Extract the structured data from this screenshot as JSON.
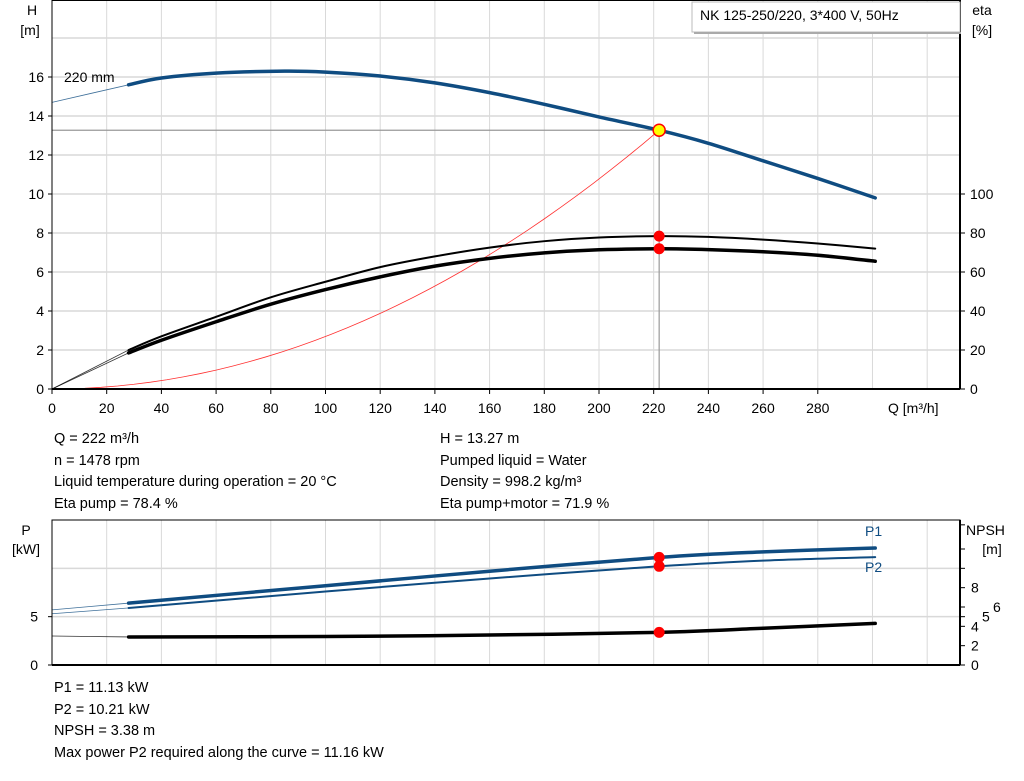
{
  "colors": {
    "head": "#0f4c81",
    "eta": "#000000",
    "system": "#ff3030",
    "duty_point": "#ffff00",
    "marker": "#ff0000",
    "grid": "#d9d9d9",
    "power": "#0f4c81",
    "npsh": "#000000"
  },
  "chart_data": [
    {
      "type": "line",
      "title": "NK 125-250/220, 3*400 V, 50Hz",
      "xlabel": "Q [m³/h]",
      "ylabel_left": [
        "H",
        "[m]"
      ],
      "ylabel_right": [
        "eta",
        "[%]"
      ],
      "xlim": [
        0,
        332
      ],
      "ylim_left": [
        0,
        20
      ],
      "ylim_right": [
        0,
        200
      ],
      "xticks": [
        "0",
        "20",
        "40",
        "60",
        "80",
        "100",
        "120",
        "140",
        "160",
        "180",
        "200",
        "220",
        "240",
        "260",
        "280"
      ],
      "yticks_left": [
        "0",
        "2",
        "4",
        "6",
        "8",
        "10",
        "12",
        "14",
        "16"
      ],
      "yticks_right": [
        "0",
        "20",
        "40",
        "60",
        "80",
        "100"
      ],
      "grid": true,
      "curve_label": "220 mm",
      "series": [
        {
          "key": "head",
          "axis": "left",
          "x": [
            0,
            28,
            40,
            60,
            85,
            100,
            120,
            140,
            160,
            180,
            200,
            222,
            240,
            260,
            280,
            301
          ],
          "y": [
            14.7,
            15.6,
            15.95,
            16.2,
            16.3,
            16.25,
            16.05,
            15.7,
            15.2,
            14.6,
            13.95,
            13.27,
            12.6,
            11.7,
            10.8,
            9.8
          ]
        },
        {
          "key": "eta_pump",
          "axis": "right",
          "x": [
            0,
            28,
            40,
            60,
            80,
            100,
            120,
            140,
            160,
            180,
            200,
            222,
            240,
            260,
            280,
            301
          ],
          "y": [
            0,
            20,
            27,
            37,
            47,
            55,
            62.5,
            68,
            72.5,
            75.8,
            77.7,
            78.4,
            78,
            76.6,
            74.6,
            72
          ]
        },
        {
          "key": "eta_pump_motor",
          "axis": "right",
          "x": [
            0,
            28,
            40,
            60,
            80,
            100,
            120,
            140,
            160,
            180,
            200,
            222,
            240,
            260,
            280,
            301
          ],
          "y": [
            0,
            18.5,
            25,
            34.5,
            43.5,
            51,
            57.5,
            63,
            67,
            69.8,
            71.4,
            71.9,
            71.5,
            70.4,
            68.6,
            65.5
          ]
        },
        {
          "key": "system",
          "axis": "left",
          "type": "quadratic",
          "x": [
            0,
            222
          ],
          "y": [
            0,
            13.27
          ]
        }
      ],
      "duty_point": {
        "Q": 222,
        "H": 13.27,
        "eta_pump": 78.4,
        "eta_pump_motor": 71.9
      }
    },
    {
      "type": "line",
      "ylabel_left": [
        "P",
        "[kW]"
      ],
      "ylabel_right": [
        "NPSH",
        "[m]"
      ],
      "xlim": [
        0,
        332
      ],
      "ylim_left": [
        0,
        15
      ],
      "ylim_right": [
        0,
        15
      ],
      "yticks_left": [
        "0",
        "5"
      ],
      "yticks_right": [
        "0",
        "2",
        "4",
        "5",
        "6",
        "8"
      ],
      "grid": true,
      "series": [
        {
          "name": "P1",
          "axis": "left",
          "x": [
            0,
            28,
            100,
            160,
            222,
            260,
            301
          ],
          "y": [
            5.7,
            6.4,
            8.2,
            9.7,
            11.13,
            11.7,
            12.1
          ]
        },
        {
          "name": "P2",
          "axis": "left",
          "x": [
            0,
            28,
            100,
            160,
            222,
            260,
            301
          ],
          "y": [
            5.3,
            5.9,
            7.6,
            8.95,
            10.21,
            10.8,
            11.16
          ]
        },
        {
          "key": "npsh",
          "axis": "right",
          "x": [
            0,
            28,
            100,
            160,
            222,
            260,
            301
          ],
          "y": [
            3.0,
            2.9,
            2.95,
            3.1,
            3.38,
            3.8,
            4.3
          ]
        }
      ]
    }
  ],
  "duty_info": {
    "left": [
      "Q = 222 m³/h",
      "n = 1478 rpm",
      "Liquid temperature during operation = 20 °C",
      "Eta pump = 78.4 %"
    ],
    "right": [
      "H = 13.27 m",
      "Pumped liquid = Water",
      "Density = 998.2 kg/m³",
      "Eta pump+motor = 71.9 %"
    ]
  },
  "power_info": [
    "P1 = 11.13 kW",
    "P2 = 10.21 kW",
    "NPSH = 3.38 m",
    "Max power P2 required along the curve = 11.16 kW"
  ]
}
